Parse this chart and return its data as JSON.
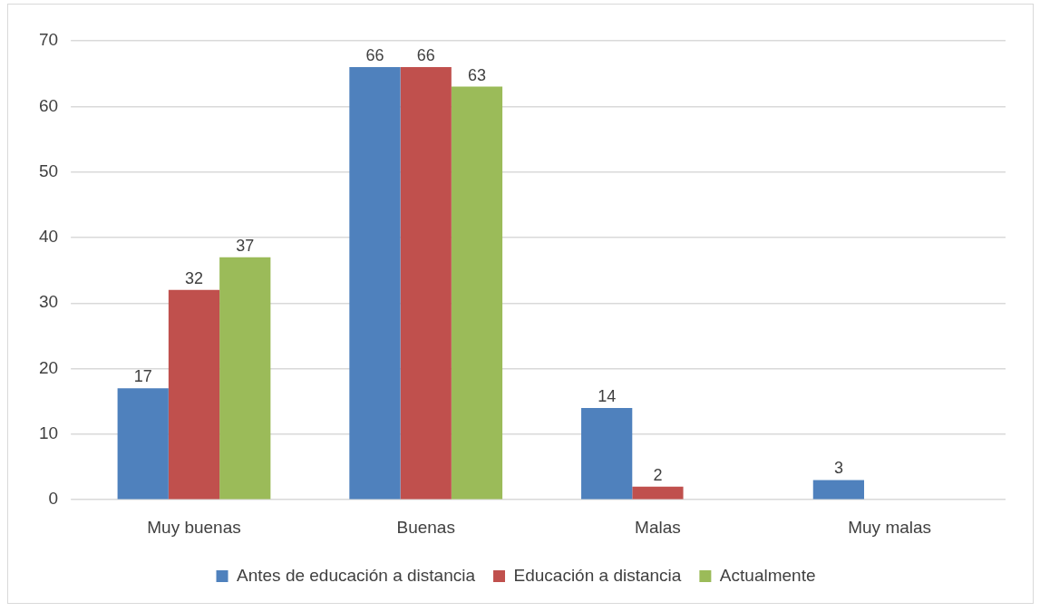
{
  "chart_data": {
    "type": "bar",
    "categories": [
      "Muy buenas",
      "Buenas",
      "Malas",
      "Muy malas"
    ],
    "series": [
      {
        "name": "Antes de educación a distancia",
        "color": "#4f81bd",
        "values": [
          17,
          66,
          14,
          3
        ]
      },
      {
        "name": "Educación a distancia",
        "color": "#c0504d",
        "values": [
          32,
          66,
          2,
          null
        ]
      },
      {
        "name": "Actualmente",
        "color": "#9bbb59",
        "values": [
          37,
          63,
          null,
          null
        ]
      }
    ],
    "ylim": [
      0,
      70
    ],
    "yticks": [
      0,
      10,
      20,
      30,
      40,
      50,
      60,
      70
    ],
    "grid": "y",
    "legend": "bottom",
    "data_labels": true
  }
}
